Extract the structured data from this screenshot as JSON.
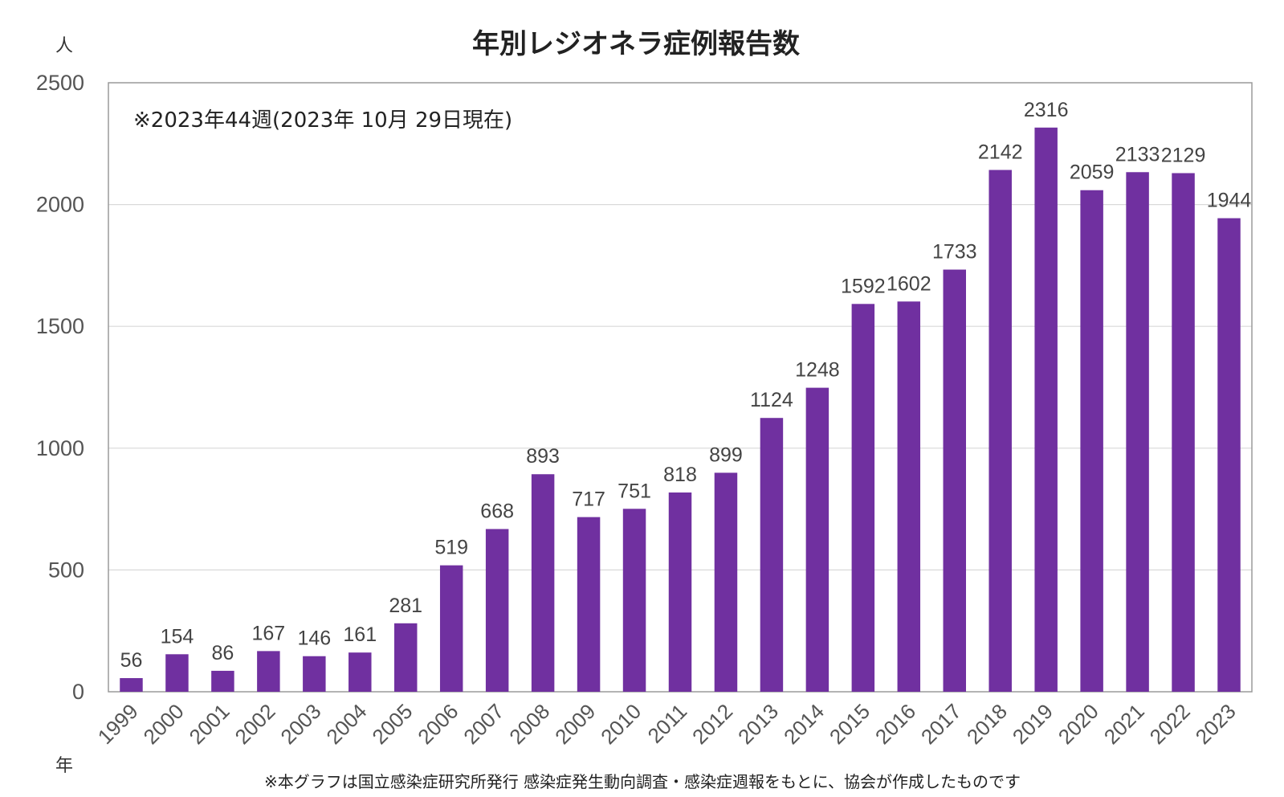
{
  "chart_data": {
    "type": "bar",
    "title": "年別レジオネラ症例報告数",
    "y_unit": "人",
    "x_unit": "年",
    "note": "※2023年44週(2023年 10月 29日現在)",
    "footnote": "※本グラフは国立感染症研究所発行 感染症発生動向調査・感染症週報をもとに、協会が作成したものです",
    "categories": [
      "1999",
      "2000",
      "2001",
      "2002",
      "2003",
      "2004",
      "2005",
      "2006",
      "2007",
      "2008",
      "2009",
      "2010",
      "2011",
      "2012",
      "2013",
      "2014",
      "2015",
      "2016",
      "2017",
      "2018",
      "2019",
      "2020",
      "2021",
      "2022",
      "2023"
    ],
    "values": [
      56,
      154,
      86,
      167,
      146,
      161,
      281,
      519,
      668,
      893,
      717,
      751,
      818,
      899,
      1124,
      1248,
      1592,
      1602,
      1733,
      2142,
      2316,
      2059,
      2133,
      2129,
      1944
    ],
    "yticks": [
      "0",
      "500",
      "1000",
      "1500",
      "2000",
      "2500"
    ],
    "ylim": [
      0,
      2500
    ],
    "bar_color": "#7030a0",
    "gridlines": true,
    "data_labels": true
  }
}
